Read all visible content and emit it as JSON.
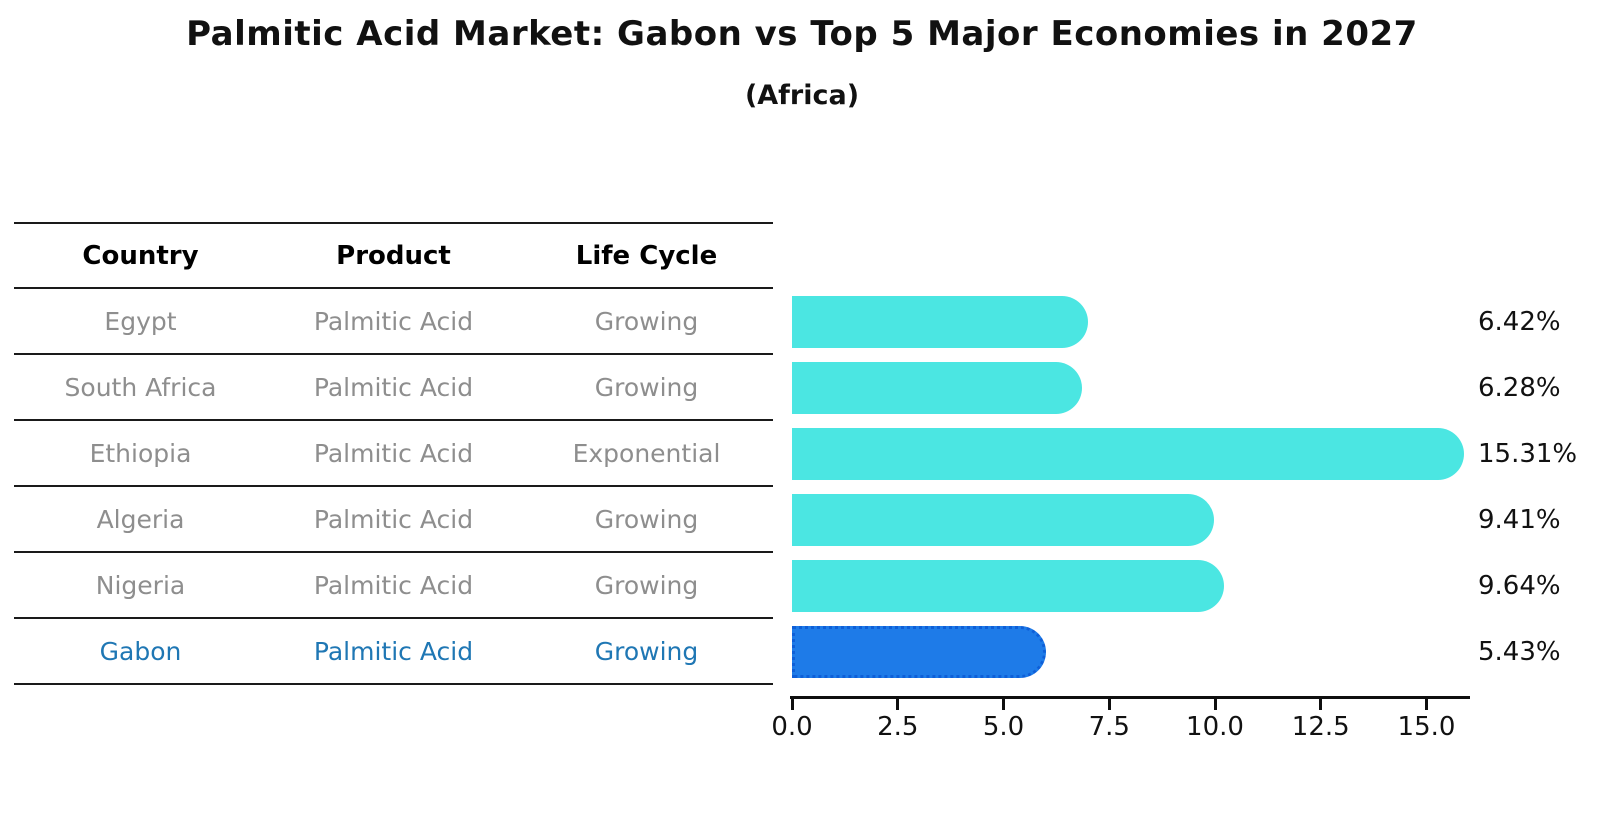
{
  "title": "Palmitic Acid Market: Gabon vs Top 5 Major Economies in 2027",
  "subtitle": "(Africa)",
  "table": {
    "headers": [
      "Country",
      "Product",
      "Life Cycle"
    ],
    "rows": [
      {
        "country": "Egypt",
        "product": "Palmitic Acid",
        "life_cycle": "Growing",
        "highlighted": false
      },
      {
        "country": "South Africa",
        "product": "Palmitic Acid",
        "life_cycle": "Growing",
        "highlighted": false
      },
      {
        "country": "Ethiopia",
        "product": "Palmitic Acid",
        "life_cycle": "Exponential",
        "highlighted": false
      },
      {
        "country": "Algeria",
        "product": "Palmitic Acid",
        "life_cycle": "Growing",
        "highlighted": false
      },
      {
        "country": "Nigeria",
        "product": "Palmitic Acid",
        "life_cycle": "Growing",
        "highlighted": false
      },
      {
        "country": "Gabon",
        "product": "Palmitic Acid",
        "life_cycle": "Growing",
        "highlighted": true
      }
    ]
  },
  "chart_data": {
    "type": "bar",
    "orientation": "horizontal",
    "title": "Palmitic Acid Market: Gabon vs Top 5 Major Economies in 2027",
    "subtitle": "(Africa)",
    "categories": [
      "Egypt",
      "South Africa",
      "Ethiopia",
      "Algeria",
      "Nigeria",
      "Gabon"
    ],
    "values": [
      6.42,
      6.28,
      15.31,
      9.41,
      9.64,
      5.43
    ],
    "value_labels": [
      "6.42%",
      "6.28%",
      "15.31%",
      "9.41%",
      "9.64%",
      "5.43%"
    ],
    "x_ticks": [
      0.0,
      2.5,
      5.0,
      7.5,
      10.0,
      12.5,
      15.0
    ],
    "x_tick_labels": [
      "0.0",
      "2.5",
      "5.0",
      "7.5",
      "10.0",
      "12.5",
      "15.0"
    ],
    "xlim": [
      0,
      16.1
    ],
    "grid": false,
    "legend": false,
    "highlight_index": 5,
    "bar_color": "#4BE6E2",
    "highlight_bar_color": "#1E7BE8",
    "highlight_border_color": "#0E5FD8"
  },
  "colors": {
    "row_text_gray": "#8E8E8E",
    "row_text_highlight": "#1F77B4",
    "axis_text": "#111111"
  }
}
